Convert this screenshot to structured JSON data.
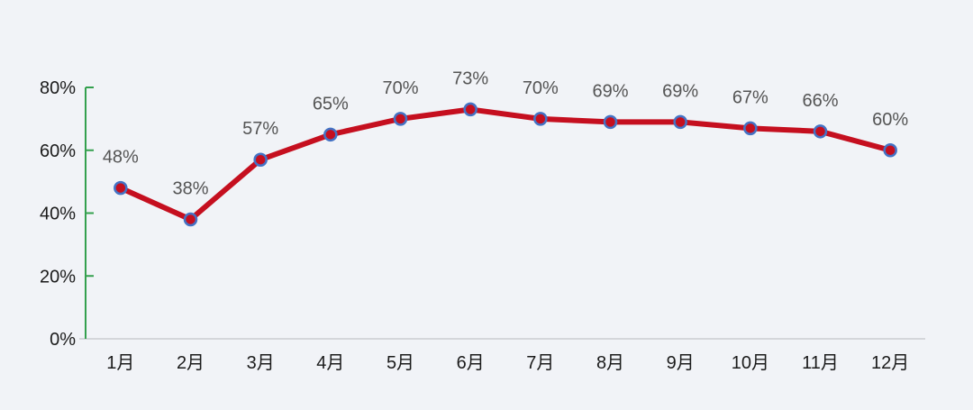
{
  "chart_data": {
    "type": "line",
    "title": "",
    "xlabel": "",
    "ylabel": "",
    "categories": [
      "1月",
      "2月",
      "3月",
      "4月",
      "5月",
      "6月",
      "7月",
      "8月",
      "9月",
      "10月",
      "11月",
      "12月"
    ],
    "series": [
      {
        "name": "monthly-percentage",
        "values": [
          48,
          38,
          57,
          65,
          70,
          73,
          70,
          69,
          69,
          67,
          66,
          60
        ],
        "value_labels": [
          "48%",
          "38%",
          "57%",
          "65%",
          "70%",
          "73%",
          "70%",
          "69%",
          "69%",
          "67%",
          "66%",
          "60%"
        ]
      }
    ],
    "ylim": [
      0,
      80
    ],
    "yticks": [
      0,
      20,
      40,
      60,
      80
    ],
    "ytick_labels": [
      "0%",
      "20%",
      "40%",
      "60%",
      "80%"
    ],
    "grid": false,
    "legend": "none",
    "data_labels_position": "above"
  },
  "colors": {
    "background": "#f1f3f7",
    "line": "#c50f1f",
    "marker_fill": "#c50f1f",
    "marker_stroke": "#4472c4",
    "y_axis": "#34a04e",
    "x_axis": "#d4d6da",
    "data_label": "#545454",
    "axis_label": "#1b1b1b"
  }
}
